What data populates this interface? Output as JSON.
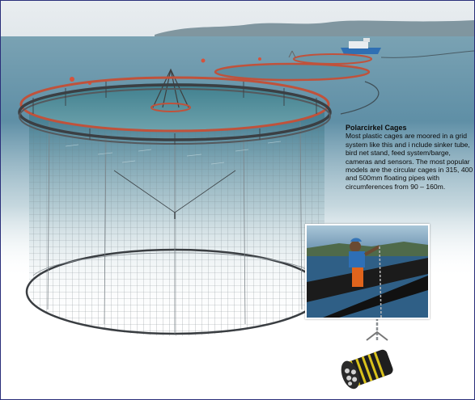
{
  "caption": {
    "title": "Polarcirkel Cages",
    "body": "Most plastic cages are moored in a grid system like this and i nclude sinker tube, bird net stand, feed system/barge, cameras and sensors. The most popular models are the circular cages in 315, 400 and 500mm floating pipes with circumferences from 90 – 160m."
  },
  "colors": {
    "frame_border": "#2a2f7a",
    "cage_collar": "#c0523b",
    "sea": "#5f8fa6",
    "net": "#8e979d"
  },
  "icons": {
    "photo": "worker-on-cage-photo",
    "coupling": "sinker-chain-coupling"
  }
}
